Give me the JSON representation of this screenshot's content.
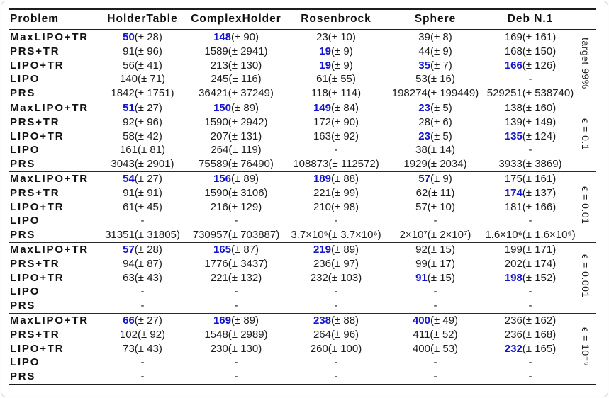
{
  "colors": {
    "highlight": "#1414cc",
    "rule": "#1d1d1d",
    "card_border": "#d6d6d6"
  },
  "table": {
    "corner_header": "Problem",
    "columns": [
      "HolderTable",
      "ComplexHolder",
      "Rosenbrock",
      "Sphere",
      "Deb N.1"
    ],
    "sections": [
      {
        "group_label": "target 99%",
        "rows": [
          {
            "method": "MaxLIPO+TR",
            "cells": [
              {
                "val": "50",
                "err": "(± 28)",
                "hl": true
              },
              {
                "val": "148",
                "err": "(± 90)",
                "hl": true
              },
              {
                "val": "23",
                "err": "(± 10)",
                "hl": false
              },
              {
                "val": "39",
                "err": "(± 8)",
                "hl": false
              },
              {
                "val": "169",
                "err": "(± 161)",
                "hl": false
              }
            ]
          },
          {
            "method": "PRS+TR",
            "cells": [
              {
                "val": "91",
                "err": "(± 96)",
                "hl": false
              },
              {
                "val": "1589",
                "err": "(± 2941)",
                "hl": false
              },
              {
                "val": "19",
                "err": "(± 9)",
                "hl": true
              },
              {
                "val": "44",
                "err": "(± 9)",
                "hl": false
              },
              {
                "val": "168",
                "err": "(± 150)",
                "hl": false
              }
            ]
          },
          {
            "method": "LIPO+TR",
            "cells": [
              {
                "val": "56",
                "err": "(± 41)",
                "hl": false
              },
              {
                "val": "213",
                "err": "(± 130)",
                "hl": false
              },
              {
                "val": "19",
                "err": "(± 9)",
                "hl": true
              },
              {
                "val": "35",
                "err": "(± 7)",
                "hl": true
              },
              {
                "val": "166",
                "err": "(± 126)",
                "hl": true
              }
            ]
          },
          {
            "method": "LIPO",
            "cells": [
              {
                "val": "140",
                "err": "(± 71)",
                "hl": false
              },
              {
                "val": "245",
                "err": "(± 116)",
                "hl": false
              },
              {
                "val": "61",
                "err": "(± 55)",
                "hl": false
              },
              {
                "val": "53",
                "err": "(± 16)",
                "hl": false
              },
              {
                "val": "-",
                "err": "",
                "hl": false
              }
            ]
          },
          {
            "method": "PRS",
            "cells": [
              {
                "val": "1842",
                "err": "(± 1751)",
                "hl": false
              },
              {
                "val": "36421",
                "err": "(± 37249)",
                "hl": false
              },
              {
                "val": "118",
                "err": "(± 114)",
                "hl": false
              },
              {
                "val": "198274",
                "err": "(± 199449)",
                "hl": false
              },
              {
                "val": "529251",
                "err": "(± 538740)",
                "hl": false
              }
            ]
          }
        ]
      },
      {
        "group_label": "ϵ = 0.1",
        "rows": [
          {
            "method": "MaxLIPO+TR",
            "cells": [
              {
                "val": "51",
                "err": "(± 27)",
                "hl": true
              },
              {
                "val": "150",
                "err": "(± 89)",
                "hl": true
              },
              {
                "val": "149",
                "err": "(± 84)",
                "hl": true
              },
              {
                "val": "23",
                "err": "(± 5)",
                "hl": true
              },
              {
                "val": "138",
                "err": "(± 160)",
                "hl": false
              }
            ]
          },
          {
            "method": "PRS+TR",
            "cells": [
              {
                "val": "92",
                "err": "(± 96)",
                "hl": false
              },
              {
                "val": "1590",
                "err": "(± 2942)",
                "hl": false
              },
              {
                "val": "172",
                "err": "(± 90)",
                "hl": false
              },
              {
                "val": "28",
                "err": "(± 6)",
                "hl": false
              },
              {
                "val": "139",
                "err": "(± 149)",
                "hl": false
              }
            ]
          },
          {
            "method": "LIPO+TR",
            "cells": [
              {
                "val": "58",
                "err": "(± 42)",
                "hl": false
              },
              {
                "val": "207",
                "err": "(± 131)",
                "hl": false
              },
              {
                "val": "163",
                "err": "(± 92)",
                "hl": false
              },
              {
                "val": "23",
                "err": "(± 5)",
                "hl": true
              },
              {
                "val": "135",
                "err": "(± 124)",
                "hl": true
              }
            ]
          },
          {
            "method": "LIPO",
            "cells": [
              {
                "val": "161",
                "err": "(± 81)",
                "hl": false
              },
              {
                "val": "264",
                "err": "(± 119)",
                "hl": false
              },
              {
                "val": "-",
                "err": "",
                "hl": false
              },
              {
                "val": "38",
                "err": "(± 14)",
                "hl": false
              },
              {
                "val": "-",
                "err": "",
                "hl": false
              }
            ]
          },
          {
            "method": "PRS",
            "cells": [
              {
                "val": "3043",
                "err": "(± 2901)",
                "hl": false
              },
              {
                "val": "75589",
                "err": "(± 76490)",
                "hl": false
              },
              {
                "val": "108873",
                "err": "(± 112572)",
                "hl": false
              },
              {
                "val": "1929",
                "err": "(± 2034)",
                "hl": false
              },
              {
                "val": "3933",
                "err": "(± 3869)",
                "hl": false
              }
            ]
          }
        ]
      },
      {
        "group_label": "ϵ = 0.01",
        "rows": [
          {
            "method": "MaxLIPO+TR",
            "cells": [
              {
                "val": "54",
                "err": "(± 27)",
                "hl": true
              },
              {
                "val": "156",
                "err": "(± 89)",
                "hl": true
              },
              {
                "val": "189",
                "err": "(± 88)",
                "hl": true
              },
              {
                "val": "57",
                "err": "(± 9)",
                "hl": true
              },
              {
                "val": "175",
                "err": "(± 161)",
                "hl": false
              }
            ]
          },
          {
            "method": "PRS+TR",
            "cells": [
              {
                "val": "91",
                "err": "(± 91)",
                "hl": false
              },
              {
                "val": "1590",
                "err": "(± 3106)",
                "hl": false
              },
              {
                "val": "221",
                "err": "(± 99)",
                "hl": false
              },
              {
                "val": "62",
                "err": "(± 11)",
                "hl": false
              },
              {
                "val": "174",
                "err": "(± 137)",
                "hl": true
              }
            ]
          },
          {
            "method": "LIPO+TR",
            "cells": [
              {
                "val": "61",
                "err": "(± 45)",
                "hl": false
              },
              {
                "val": "216",
                "err": "(± 129)",
                "hl": false
              },
              {
                "val": "210",
                "err": "(± 98)",
                "hl": false
              },
              {
                "val": "57",
                "err": "(± 10)",
                "hl": false
              },
              {
                "val": "181",
                "err": "(± 166)",
                "hl": false
              }
            ]
          },
          {
            "method": "LIPO",
            "cells": [
              {
                "val": "-",
                "err": "",
                "hl": false
              },
              {
                "val": "-",
                "err": "",
                "hl": false
              },
              {
                "val": "-",
                "err": "",
                "hl": false
              },
              {
                "val": "-",
                "err": "",
                "hl": false
              },
              {
                "val": "-",
                "err": "",
                "hl": false
              }
            ]
          },
          {
            "method": "PRS",
            "cells": [
              {
                "val": "31351",
                "err": "(± 31805)",
                "hl": false
              },
              {
                "val": "730957",
                "err": "(± 703887)",
                "hl": false
              },
              {
                "val": "3.7×10⁶",
                "err": "(± 3.7×10⁶)",
                "hl": false
              },
              {
                "val": "2×10⁷",
                "err": "(± 2×10⁷)",
                "hl": false
              },
              {
                "val": "1.6×10⁶",
                "err": "(± 1.6×10⁶)",
                "hl": false
              }
            ]
          }
        ]
      },
      {
        "group_label": "ϵ = 0.001",
        "rows": [
          {
            "method": "MaxLIPO+TR",
            "cells": [
              {
                "val": "57",
                "err": "(± 28)",
                "hl": true
              },
              {
                "val": "165",
                "err": "(± 87)",
                "hl": true
              },
              {
                "val": "219",
                "err": "(± 89)",
                "hl": true
              },
              {
                "val": "92",
                "err": "(± 15)",
                "hl": false
              },
              {
                "val": "199",
                "err": "(± 171)",
                "hl": false
              }
            ]
          },
          {
            "method": "PRS+TR",
            "cells": [
              {
                "val": "94",
                "err": "(± 87)",
                "hl": false
              },
              {
                "val": "1776",
                "err": "(± 3437)",
                "hl": false
              },
              {
                "val": "236",
                "err": "(± 97)",
                "hl": false
              },
              {
                "val": "99",
                "err": "(± 17)",
                "hl": false
              },
              {
                "val": "202",
                "err": "(± 174)",
                "hl": false
              }
            ]
          },
          {
            "method": "LIPO+TR",
            "cells": [
              {
                "val": "63",
                "err": "(± 43)",
                "hl": false
              },
              {
                "val": "221",
                "err": "(± 132)",
                "hl": false
              },
              {
                "val": "232",
                "err": "(± 103)",
                "hl": false
              },
              {
                "val": "91",
                "err": "(± 15)",
                "hl": true
              },
              {
                "val": "198",
                "err": "(± 152)",
                "hl": true
              }
            ]
          },
          {
            "method": "LIPO",
            "cells": [
              {
                "val": "-",
                "err": "",
                "hl": false
              },
              {
                "val": "-",
                "err": "",
                "hl": false
              },
              {
                "val": "-",
                "err": "",
                "hl": false
              },
              {
                "val": "-",
                "err": "",
                "hl": false
              },
              {
                "val": "-",
                "err": "",
                "hl": false
              }
            ]
          },
          {
            "method": "PRS",
            "cells": [
              {
                "val": "-",
                "err": "",
                "hl": false
              },
              {
                "val": "-",
                "err": "",
                "hl": false
              },
              {
                "val": "-",
                "err": "",
                "hl": false
              },
              {
                "val": "-",
                "err": "",
                "hl": false
              },
              {
                "val": "-",
                "err": "",
                "hl": false
              }
            ]
          }
        ]
      },
      {
        "group_label": "ϵ = 10⁻⁹",
        "rows": [
          {
            "method": "MaxLIPO+TR",
            "cells": [
              {
                "val": "66",
                "err": "(± 27)",
                "hl": true
              },
              {
                "val": "169",
                "err": "(± 89)",
                "hl": true
              },
              {
                "val": "238",
                "err": "(± 88)",
                "hl": true
              },
              {
                "val": "400",
                "err": "(± 49)",
                "hl": true
              },
              {
                "val": "236",
                "err": "(± 162)",
                "hl": false
              }
            ]
          },
          {
            "method": "PRS+TR",
            "cells": [
              {
                "val": "102",
                "err": "(± 92)",
                "hl": false
              },
              {
                "val": "1548",
                "err": "(± 2989)",
                "hl": false
              },
              {
                "val": "264",
                "err": "(± 96)",
                "hl": false
              },
              {
                "val": "411",
                "err": "(± 52)",
                "hl": false
              },
              {
                "val": "236",
                "err": "(± 168)",
                "hl": false
              }
            ]
          },
          {
            "method": "LIPO+TR",
            "cells": [
              {
                "val": "73",
                "err": "(± 43)",
                "hl": false
              },
              {
                "val": "230",
                "err": "(± 130)",
                "hl": false
              },
              {
                "val": "260",
                "err": "(± 100)",
                "hl": false
              },
              {
                "val": "400",
                "err": "(± 53)",
                "hl": false
              },
              {
                "val": "232",
                "err": "(± 165)",
                "hl": true
              }
            ]
          },
          {
            "method": "LIPO",
            "cells": [
              {
                "val": "-",
                "err": "",
                "hl": false
              },
              {
                "val": "-",
                "err": "",
                "hl": false
              },
              {
                "val": "-",
                "err": "",
                "hl": false
              },
              {
                "val": "-",
                "err": "",
                "hl": false
              },
              {
                "val": "-",
                "err": "",
                "hl": false
              }
            ]
          },
          {
            "method": "PRS",
            "cells": [
              {
                "val": "-",
                "err": "",
                "hl": false
              },
              {
                "val": "-",
                "err": "",
                "hl": false
              },
              {
                "val": "-",
                "err": "",
                "hl": false
              },
              {
                "val": "-",
                "err": "",
                "hl": false
              },
              {
                "val": "-",
                "err": "",
                "hl": false
              }
            ]
          }
        ]
      }
    ]
  }
}
